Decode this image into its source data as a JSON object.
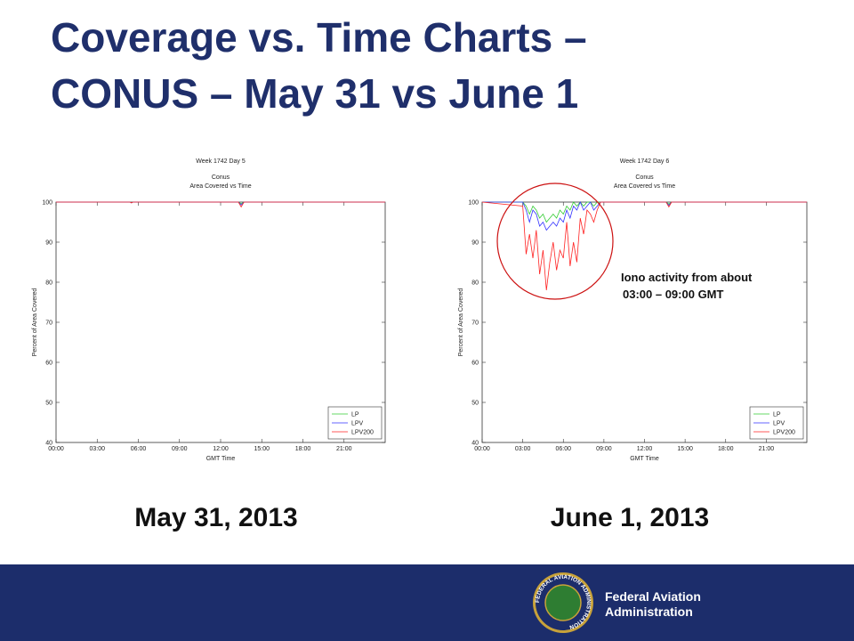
{
  "slide": {
    "title": [
      "Coverage vs. Time Charts –",
      "CONUS – May 31 vs June 1"
    ],
    "captions": [
      "May 31, 2013",
      "June 1, 2013"
    ],
    "footer": [
      "Federal Aviation",
      "Administration"
    ],
    "seal": "FEDERAL AVIATION ADMINISTRATION"
  },
  "chart_data": [
    {
      "type": "line",
      "title": "Week 1742 Day 5",
      "subtitle": [
        "Conus",
        "Area Covered vs Time"
      ],
      "xlabel": "GMT Time",
      "ylabel": "Percent of Area Covered",
      "x": [
        0,
        5.4,
        5.5,
        5.6,
        13.3,
        13.5,
        13.7,
        24
      ],
      "series": [
        {
          "name": "LP",
          "color": "#33cc33",
          "values": [
            100,
            100,
            99.9,
            100,
            100,
            99.6,
            100,
            100
          ]
        },
        {
          "name": "LPV",
          "color": "#3333ff",
          "values": [
            100,
            100,
            99.8,
            100,
            100,
            99.3,
            100,
            100
          ]
        },
        {
          "name": "LPV200",
          "color": "#ff2222",
          "values": [
            100,
            100,
            99.8,
            100,
            100,
            98.8,
            100,
            100
          ]
        }
      ],
      "xlim": [
        0,
        24
      ],
      "ylim": [
        40,
        100
      ],
      "xticks": [
        {
          "value": 0,
          "label": "00:00"
        },
        {
          "value": 3,
          "label": "03:00"
        },
        {
          "value": 6,
          "label": "06:00"
        },
        {
          "value": 9,
          "label": "09:00"
        },
        {
          "value": 12,
          "label": "12:00"
        },
        {
          "value": 15,
          "label": "15:00"
        },
        {
          "value": 18,
          "label": "18:00"
        },
        {
          "value": 21,
          "label": "21:00"
        }
      ],
      "yticks": [
        40,
        50,
        60,
        70,
        80,
        90,
        100
      ],
      "legend": "lower right"
    },
    {
      "type": "line",
      "title": "Week 1742 Day 6",
      "subtitle": [
        "Conus",
        "Area Covered vs Time"
      ],
      "xlabel": "GMT Time",
      "ylabel": "Percent of Area Covered",
      "x": [
        0,
        3,
        3.25,
        3.5,
        3.75,
        4,
        4.25,
        4.5,
        4.75,
        5,
        5.25,
        5.5,
        5.75,
        6,
        6.25,
        6.5,
        6.75,
        7,
        7.25,
        7.5,
        7.75,
        8,
        8.25,
        8.5,
        8.75,
        13.6,
        13.8,
        14,
        24
      ],
      "series": [
        {
          "name": "LP",
          "color": "#33cc33",
          "values": [
            100,
            100,
            99,
            97,
            99,
            98,
            96,
            97,
            95,
            96,
            97,
            96,
            98,
            97,
            99,
            98,
            100,
            99,
            100,
            99,
            100,
            100,
            99,
            100,
            100,
            100,
            99.5,
            100,
            100
          ]
        },
        {
          "name": "LPV",
          "color": "#3333ff",
          "values": [
            100,
            100,
            98,
            95,
            98,
            97,
            94,
            95,
            93,
            94,
            95,
            94,
            96,
            95,
            98,
            96,
            99,
            98,
            100,
            98,
            99,
            100,
            98,
            99,
            100,
            100,
            99.2,
            100,
            100
          ]
        },
        {
          "name": "LPV200",
          "color": "#ff2222",
          "values": [
            100,
            99,
            87,
            92,
            86,
            93,
            82,
            88,
            78,
            85,
            90,
            83,
            88,
            86,
            95,
            84,
            90,
            85,
            96,
            92,
            98,
            97,
            95,
            98,
            100,
            100,
            98.8,
            100,
            100
          ]
        }
      ],
      "xlim": [
        0,
        24
      ],
      "ylim": [
        40,
        100
      ],
      "xticks": [
        {
          "value": 0,
          "label": "00:00"
        },
        {
          "value": 3,
          "label": "03:00"
        },
        {
          "value": 6,
          "label": "06:00"
        },
        {
          "value": 9,
          "label": "09:00"
        },
        {
          "value": 12,
          "label": "12:00"
        },
        {
          "value": 15,
          "label": "15:00"
        },
        {
          "value": 18,
          "label": "18:00"
        },
        {
          "value": 21,
          "label": "21:00"
        }
      ],
      "yticks": [
        40,
        50,
        60,
        70,
        80,
        90,
        100
      ],
      "legend": "lower right",
      "annotation": [
        "Iono activity from about",
        "03:00 – 09:00 GMT"
      ]
    }
  ]
}
